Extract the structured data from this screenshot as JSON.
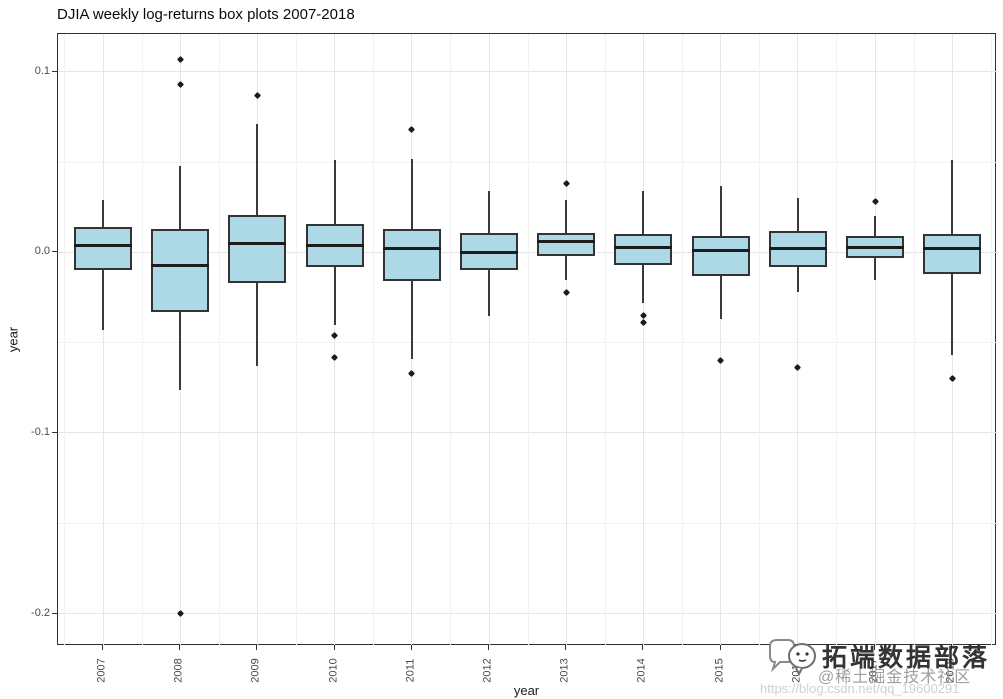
{
  "chart_data": {
    "type": "boxplot",
    "title": "DJIA weekly log-returns box plots 2007-2018",
    "xlabel": "year",
    "ylabel": "year",
    "categories": [
      "2007",
      "2008",
      "2009",
      "2010",
      "2011",
      "2012",
      "2013",
      "2014",
      "2015",
      "2016",
      "2017",
      "2018"
    ],
    "ylim": [
      -0.218,
      0.121
    ],
    "y_major_ticks": [
      0.1,
      0.0,
      -0.1,
      -0.2
    ],
    "y_tick_labels": [
      "0.1",
      "0.0",
      "-0.1",
      "-0.2"
    ],
    "y_minor_gridlines": [
      0.05,
      -0.05,
      -0.15
    ],
    "grid": true,
    "legend": false,
    "box_fill_color": "#ADD8E6",
    "box_border_color": "#333333",
    "series": [
      {
        "year": "2007",
        "whisker_low": -0.043,
        "q1": -0.01,
        "median": 0.004,
        "q3": 0.014,
        "whisker_high": 0.029,
        "outliers": []
      },
      {
        "year": "2008",
        "whisker_low": -0.076,
        "q1": -0.033,
        "median": -0.007,
        "q3": 0.013,
        "whisker_high": 0.048,
        "outliers": [
          0.107,
          0.093,
          -0.2
        ]
      },
      {
        "year": "2009",
        "whisker_low": -0.063,
        "q1": -0.017,
        "median": 0.005,
        "q3": 0.021,
        "whisker_high": 0.071,
        "outliers": [
          0.087
        ]
      },
      {
        "year": "2010",
        "whisker_low": -0.04,
        "q1": -0.008,
        "median": 0.004,
        "q3": 0.016,
        "whisker_high": 0.051,
        "outliers": [
          -0.046,
          -0.058
        ]
      },
      {
        "year": "2011",
        "whisker_low": -0.059,
        "q1": -0.016,
        "median": 0.002,
        "q3": 0.013,
        "whisker_high": 0.052,
        "outliers": [
          0.068,
          -0.067
        ]
      },
      {
        "year": "2012",
        "whisker_low": -0.035,
        "q1": -0.01,
        "median": 0.0,
        "q3": 0.011,
        "whisker_high": 0.034,
        "outliers": []
      },
      {
        "year": "2013",
        "whisker_low": -0.015,
        "q1": -0.002,
        "median": 0.006,
        "q3": 0.011,
        "whisker_high": 0.029,
        "outliers": [
          0.038,
          -0.022
        ]
      },
      {
        "year": "2014",
        "whisker_low": -0.028,
        "q1": -0.007,
        "median": 0.003,
        "q3": 0.01,
        "whisker_high": 0.034,
        "outliers": [
          -0.035,
          -0.039
        ]
      },
      {
        "year": "2015",
        "whisker_low": -0.037,
        "q1": -0.013,
        "median": 0.001,
        "q3": 0.009,
        "whisker_high": 0.037,
        "outliers": [
          -0.06
        ]
      },
      {
        "year": "2016",
        "whisker_low": -0.022,
        "q1": -0.008,
        "median": 0.002,
        "q3": 0.012,
        "whisker_high": 0.03,
        "outliers": [
          -0.064
        ]
      },
      {
        "year": "2017",
        "whisker_low": -0.015,
        "q1": -0.003,
        "median": 0.003,
        "q3": 0.009,
        "whisker_high": 0.02,
        "outliers": [
          0.028
        ]
      },
      {
        "year": "2018",
        "whisker_low": -0.057,
        "q1": -0.012,
        "median": 0.002,
        "q3": 0.01,
        "whisker_high": 0.051,
        "outliers": [
          -0.07
        ]
      }
    ]
  },
  "watermark": {
    "brand": "拓端数据部落",
    "community": "@稀土掘金技术社区",
    "url": "https://blog.csdn.net/qq_19600291",
    "logo": "chat-bubbles-icon"
  }
}
